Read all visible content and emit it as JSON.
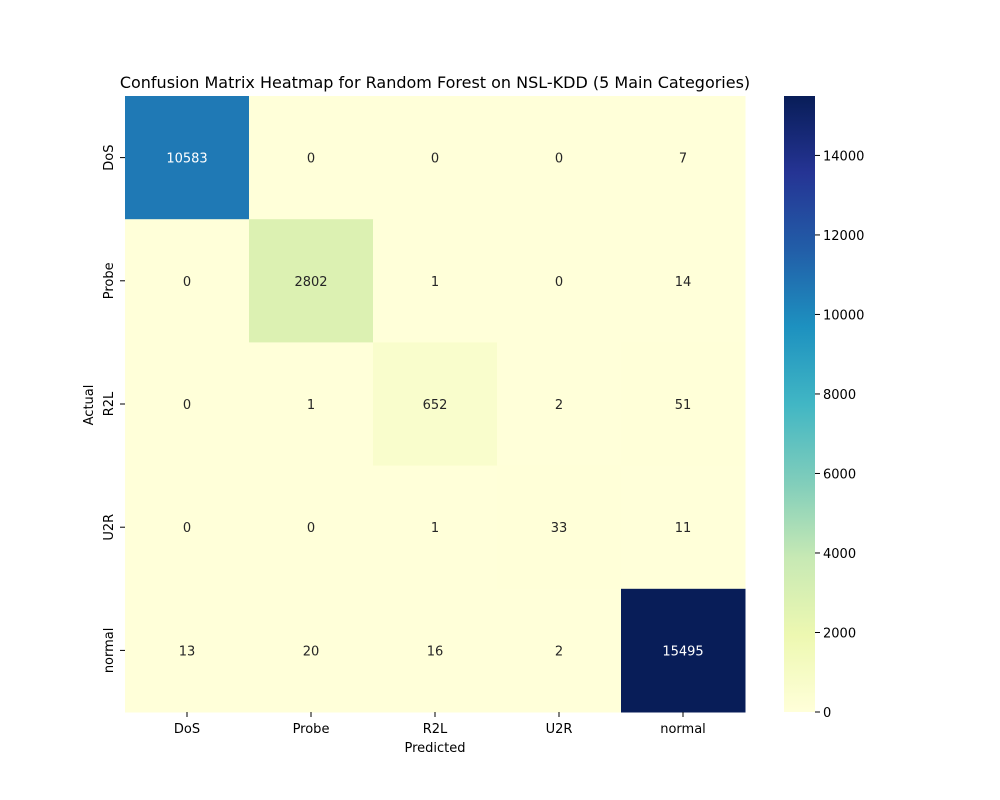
{
  "chart_data": {
    "type": "heatmap",
    "title": "Confusion Matrix Heatmap for Random Forest on NSL-KDD (5 Main Categories)",
    "xlabel": "Predicted",
    "ylabel": "Actual",
    "x_categories": [
      "DoS",
      "Probe",
      "R2L",
      "U2R",
      "normal"
    ],
    "y_categories": [
      "DoS",
      "Probe",
      "R2L",
      "U2R",
      "normal"
    ],
    "values": [
      [
        10583,
        0,
        0,
        0,
        7
      ],
      [
        0,
        2802,
        1,
        0,
        14
      ],
      [
        0,
        1,
        652,
        2,
        51
      ],
      [
        0,
        0,
        1,
        33,
        11
      ],
      [
        13,
        20,
        16,
        2,
        15495
      ]
    ],
    "colormap": "YlGnBu",
    "colorbar": {
      "range": [
        0,
        15495
      ],
      "ticks": [
        0,
        2000,
        4000,
        6000,
        8000,
        10000,
        12000,
        14000
      ]
    }
  }
}
